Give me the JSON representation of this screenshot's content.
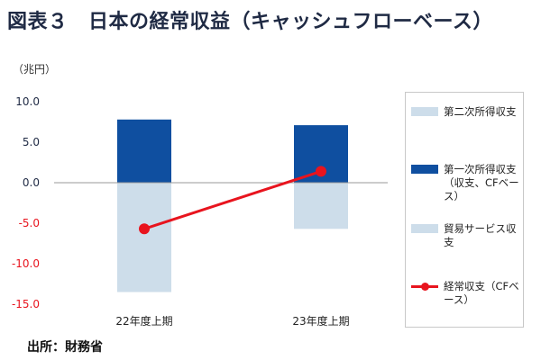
{
  "figure": {
    "title": "図表３　日本の経常収益（キャッシュフローベース）",
    "unit": "（兆円）",
    "source": "出所：財務省"
  },
  "chart_data": {
    "type": "bar",
    "stacked": true,
    "categories": [
      "22年度上期",
      "23年度上期"
    ],
    "ylim": [
      -15,
      10
    ],
    "yticks": [
      10.0,
      5.0,
      0.0,
      -5.0,
      -10.0,
      -15.0
    ],
    "ytick_labels": [
      "10.0",
      "5.0",
      "0.0",
      "-5.0",
      "-10.0",
      "-15.0"
    ],
    "series": [
      {
        "name": "第二次所得収支",
        "type": "bar",
        "values": [
          -0.1,
          -0.1
        ],
        "color": "#cdddea"
      },
      {
        "name": "第一次所得収支（収支、CFベース）",
        "type": "bar",
        "values": [
          7.8,
          7.1
        ],
        "color": "#0f4fa0"
      },
      {
        "name": "貿易サービス収支",
        "type": "bar",
        "values": [
          -13.4,
          -5.6
        ],
        "color": "#cdddea"
      },
      {
        "name": "経常収支（CFベース）",
        "type": "line",
        "values": [
          -5.7,
          1.4
        ],
        "color": "#e8141e"
      }
    ],
    "grid": false,
    "legend": "right",
    "negative_tick_color": "#e8141e",
    "positive_tick_color": "#1f2a44"
  }
}
